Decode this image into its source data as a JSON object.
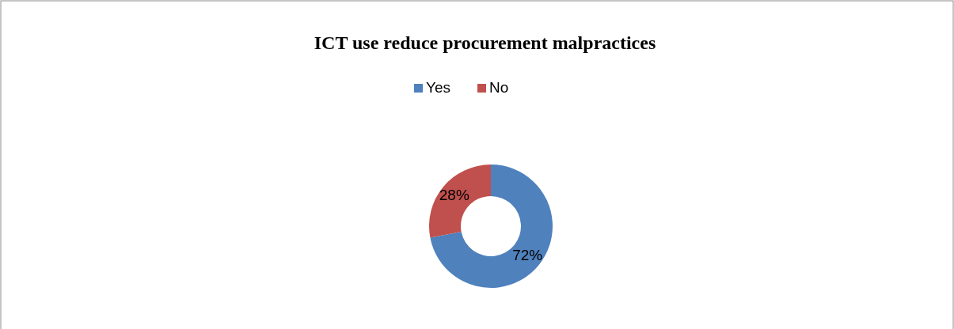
{
  "chart_data": {
    "type": "donut",
    "title": "ICT use reduce procurement malpractices",
    "categories": [
      "Yes",
      "No"
    ],
    "values": [
      72,
      28
    ],
    "colors": [
      "#4f81bd",
      "#c0504d"
    ],
    "legend": "top",
    "value_labels": [
      "72%",
      "28%"
    ]
  }
}
